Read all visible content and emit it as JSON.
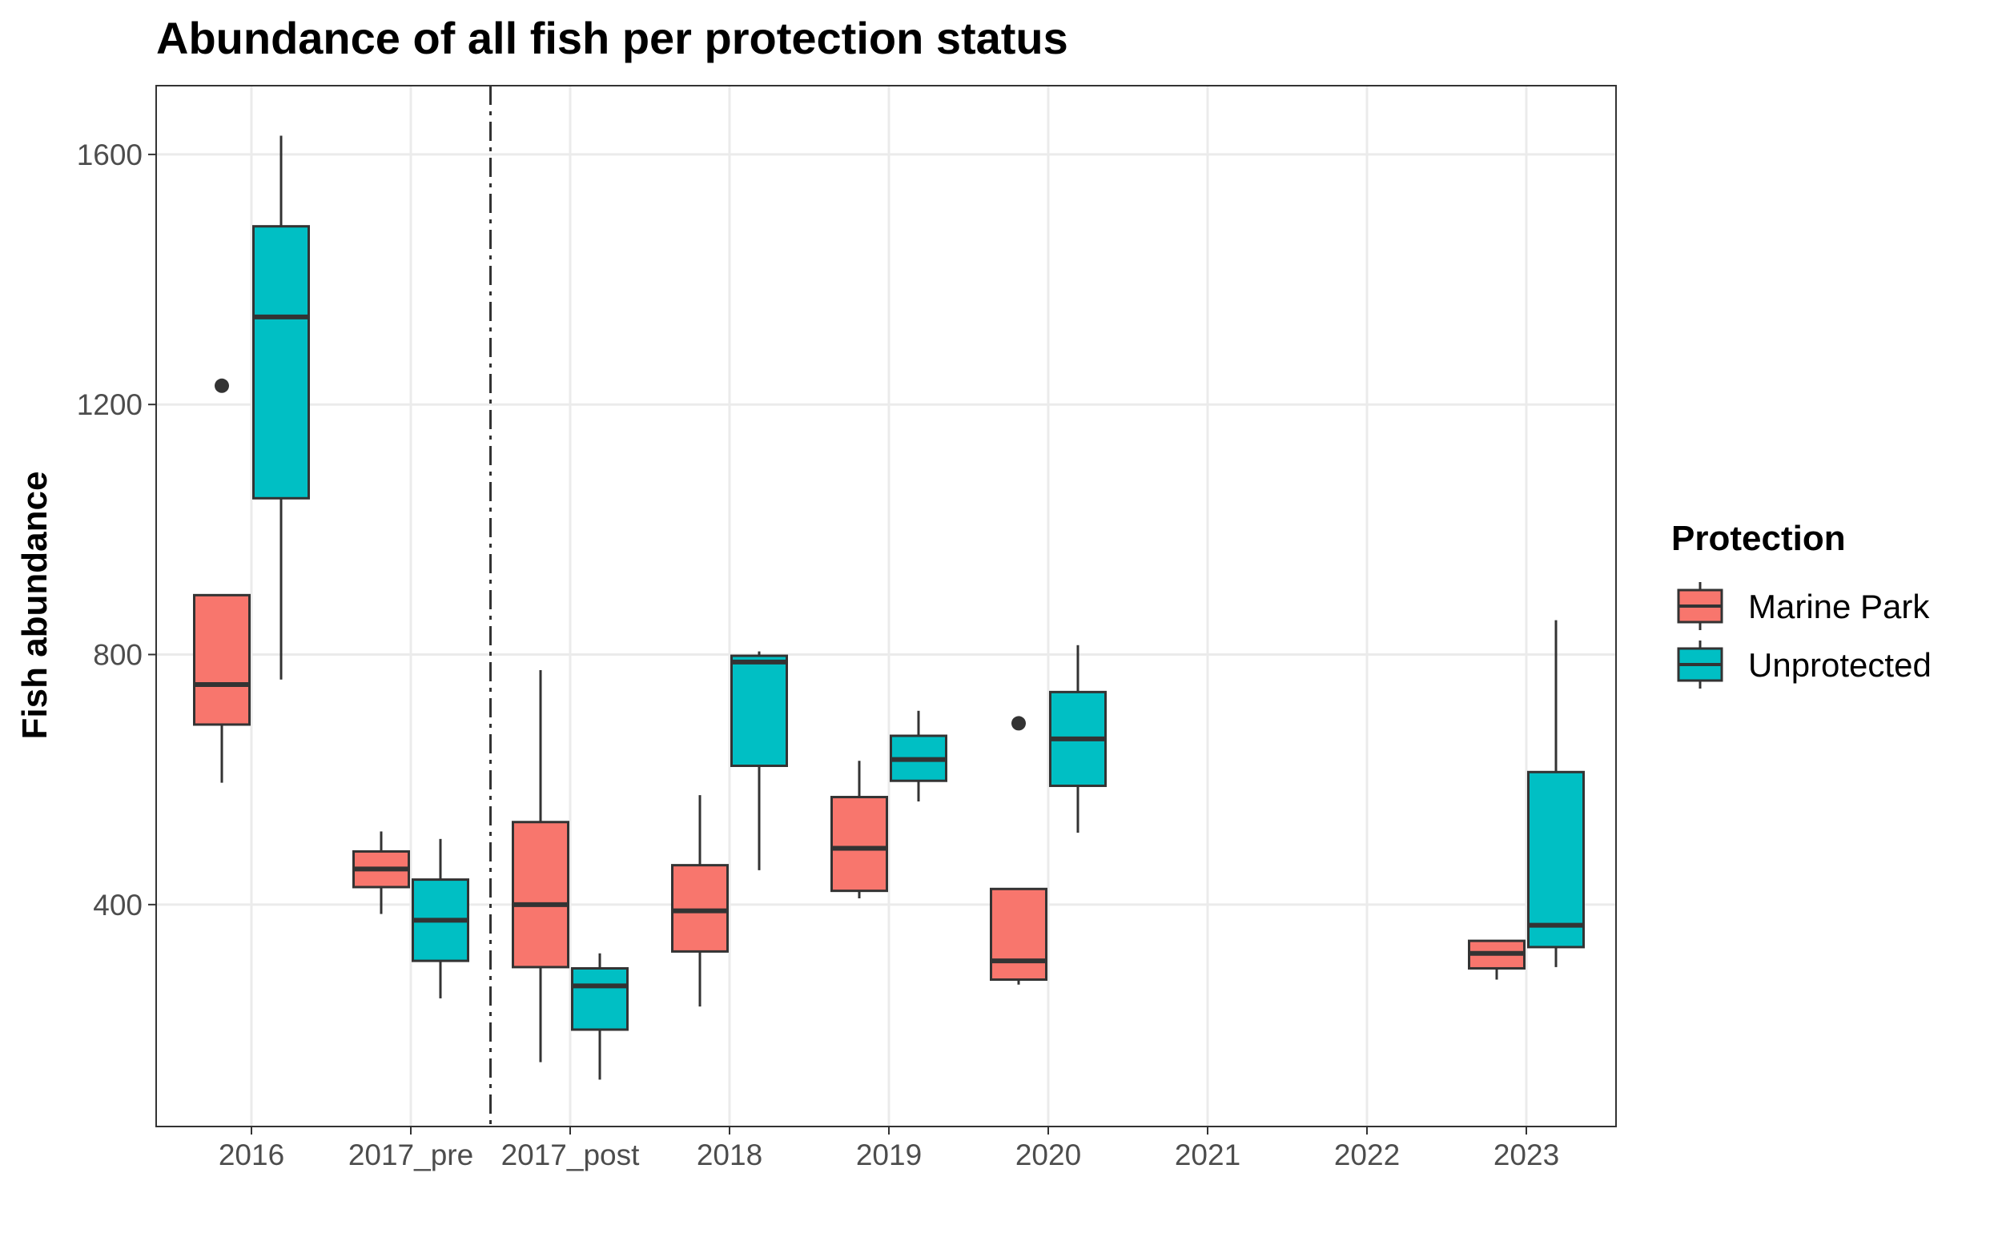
{
  "chart_data": {
    "type": "boxplot",
    "title": "Abundance of all fish per protection status",
    "xlabel": "",
    "ylabel": "Fish abundance",
    "ylim": [
      45,
      1710
    ],
    "yticks": [
      400,
      800,
      1200,
      1600
    ],
    "categories": [
      "2016",
      "2017_pre",
      "2017_post",
      "2018",
      "2019",
      "2020",
      "2021",
      "2022",
      "2023"
    ],
    "grid": true,
    "reference_line": {
      "between_categories": [
        "2017_pre",
        "2017_post"
      ],
      "style": "dashed"
    },
    "legend": {
      "title": "Protection",
      "position": "right",
      "items": [
        {
          "label": "Marine Park",
          "color": "#F8766D"
        },
        {
          "label": "Unprotected",
          "color": "#00BFC4"
        }
      ]
    },
    "series": [
      {
        "name": "Marine Park",
        "color": "#F8766D",
        "boxes": [
          {
            "category": "2016",
            "min": 595,
            "q1": 688,
            "median": 752,
            "q3": 895,
            "max": 895,
            "outliers": [
              1230
            ]
          },
          {
            "category": "2017_pre",
            "min": 385,
            "q1": 428,
            "median": 457,
            "q3": 485,
            "max": 517,
            "outliers": []
          },
          {
            "category": "2017_post",
            "min": 148,
            "q1": 300,
            "median": 400,
            "q3": 532,
            "max": 775,
            "outliers": []
          },
          {
            "category": "2018",
            "min": 237,
            "q1": 325,
            "median": 390,
            "q3": 463,
            "max": 575,
            "outliers": []
          },
          {
            "category": "2019",
            "min": 410,
            "q1": 422,
            "median": 490,
            "q3": 572,
            "max": 630,
            "outliers": []
          },
          {
            "category": "2020",
            "min": 272,
            "q1": 280,
            "median": 310,
            "q3": 425,
            "max": 425,
            "outliers": [
              690
            ]
          },
          {
            "category": "2023",
            "min": 280,
            "q1": 298,
            "median": 322,
            "q3": 342,
            "max": 342,
            "outliers": []
          }
        ]
      },
      {
        "name": "Unprotected",
        "color": "#00BFC4",
        "boxes": [
          {
            "category": "2016",
            "min": 760,
            "q1": 1050,
            "median": 1340,
            "q3": 1485,
            "max": 1630,
            "outliers": []
          },
          {
            "category": "2017_pre",
            "min": 250,
            "q1": 310,
            "median": 375,
            "q3": 440,
            "max": 505,
            "outliers": []
          },
          {
            "category": "2017_post",
            "min": 120,
            "q1": 200,
            "median": 270,
            "q3": 298,
            "max": 322,
            "outliers": []
          },
          {
            "category": "2018",
            "min": 455,
            "q1": 622,
            "median": 788,
            "q3": 798,
            "max": 805,
            "outliers": []
          },
          {
            "category": "2019",
            "min": 565,
            "q1": 598,
            "median": 632,
            "q3": 670,
            "max": 710,
            "outliers": []
          },
          {
            "category": "2020",
            "min": 515,
            "q1": 590,
            "median": 665,
            "q3": 740,
            "max": 815,
            "outliers": []
          },
          {
            "category": "2023",
            "min": 300,
            "q1": 332,
            "median": 367,
            "q3": 612,
            "max": 855,
            "outliers": []
          }
        ]
      }
    ]
  }
}
